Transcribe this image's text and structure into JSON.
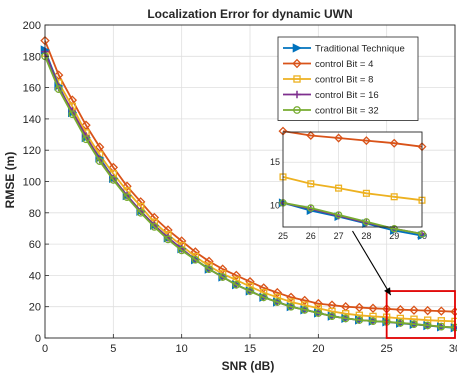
{
  "chart_data": {
    "type": "line",
    "title": "Localization Error for dynamic UWN",
    "xlabel": "SNR (dB)",
    "ylabel": "RMSE (m)",
    "xlim": [
      0,
      30
    ],
    "ylim": [
      0,
      200
    ],
    "xticks": [
      "0",
      "5",
      "10",
      "15",
      "20",
      "25",
      "30"
    ],
    "yticks": [
      "0",
      "20",
      "40",
      "60",
      "80",
      "100",
      "120",
      "140",
      "160",
      "180",
      "200"
    ],
    "grid": true,
    "legend_position": "top-right",
    "x": [
      0,
      1,
      2,
      3,
      4,
      5,
      6,
      7,
      8,
      9,
      10,
      11,
      12,
      13,
      14,
      15,
      16,
      17,
      18,
      19,
      20,
      21,
      22,
      23,
      24,
      25,
      26,
      27,
      28,
      29,
      30
    ],
    "series": [
      {
        "name": "Traditional Technique",
        "color": "#0072BD",
        "marker": "triangle-right",
        "values": [
          184,
          161,
          144,
          128,
          115,
          102,
          91,
          81,
          72,
          64,
          57,
          50,
          44,
          39,
          34,
          30,
          26,
          23,
          20,
          18,
          16,
          14,
          12.5,
          11.5,
          10.8,
          10.3,
          9.4,
          8.7,
          7.9,
          7.1,
          6.5
        ]
      },
      {
        "name": "control Bit = 4",
        "color": "#D95319",
        "marker": "diamond",
        "values": [
          190,
          168,
          152,
          136,
          122,
          109,
          97,
          87,
          77,
          69,
          62,
          55,
          49,
          44,
          40,
          36,
          32,
          29,
          26,
          24,
          22,
          21,
          20,
          19.5,
          19,
          18.6,
          18.1,
          17.8,
          17.5,
          17.2,
          16.8
        ]
      },
      {
        "name": "control Bit = 8",
        "color": "#EDB120",
        "marker": "square",
        "values": [
          182,
          163,
          148,
          131,
          117,
          105,
          94,
          84,
          74,
          66,
          59,
          52,
          46,
          41,
          37,
          33,
          29,
          26,
          23,
          21,
          19,
          17,
          15.5,
          14.5,
          13.8,
          13.3,
          12.5,
          12,
          11.4,
          11,
          10.6
        ]
      },
      {
        "name": "control Bit = 16",
        "color": "#7E2F8E",
        "marker": "plus",
        "values": [
          183,
          160,
          145,
          129,
          114,
          102,
          91,
          81,
          72,
          64,
          57,
          50,
          44,
          39,
          34,
          30,
          26,
          23,
          20,
          18,
          16,
          14,
          12.5,
          11.5,
          10.8,
          10.3,
          9.6,
          8.8,
          8,
          7.3,
          6.7
        ]
      },
      {
        "name": "control Bit = 32",
        "color": "#77AC30",
        "marker": "circle",
        "values": [
          180,
          159,
          143,
          127,
          113,
          101,
          90,
          80,
          71,
          63,
          56,
          50,
          44,
          39,
          34,
          30,
          26,
          23,
          20,
          18,
          16,
          14,
          12.5,
          11.5,
          10.8,
          10.3,
          9.7,
          8.9,
          8.1,
          7.3,
          6.7
        ]
      }
    ],
    "inset": {
      "xlim": [
        25,
        30
      ],
      "ylim": [
        7.5,
        18.5
      ],
      "xticks": [
        "25",
        "26",
        "27",
        "28",
        "29",
        "30"
      ],
      "yticks": [
        "10",
        "15"
      ],
      "grid": true
    },
    "annotation": {
      "type": "zoom-box",
      "x_range": [
        25,
        30
      ],
      "y_range": [
        0,
        30
      ],
      "color": "#E00000"
    }
  }
}
